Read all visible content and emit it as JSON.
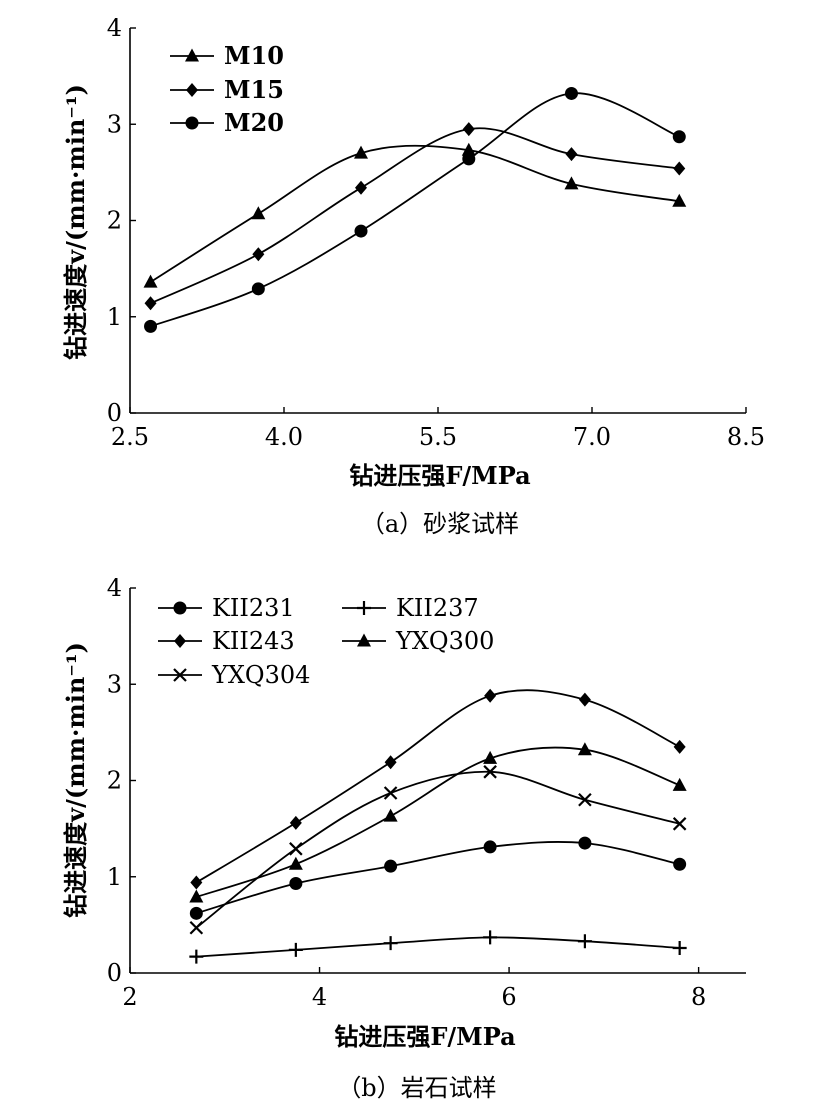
{
  "chart_data": [
    {
      "type": "line",
      "caption": "（a）砂浆试样",
      "xlabel": "钻进压强F/MPa",
      "ylabel": "钻进速度v/(mm·min⁻¹)",
      "xlim": [
        2.5,
        8.5
      ],
      "ylim": [
        0,
        4
      ],
      "xticks": [
        "2.5",
        "4.0",
        "5.5",
        "7.0",
        "8.5"
      ],
      "yticks": [
        "0",
        "1",
        "2",
        "3",
        "4"
      ],
      "legend_position": "top-left",
      "x": [
        2.7,
        3.75,
        4.75,
        5.8,
        6.8,
        7.85
      ],
      "series": [
        {
          "name": "M10",
          "marker": "triangle",
          "values": [
            1.36,
            2.07,
            2.7,
            2.73,
            2.38,
            2.2
          ]
        },
        {
          "name": "M15",
          "marker": "diamond",
          "values": [
            1.14,
            1.65,
            2.34,
            2.95,
            2.69,
            2.54
          ]
        },
        {
          "name": "M20",
          "marker": "circle",
          "values": [
            0.9,
            1.29,
            1.89,
            2.64,
            3.32,
            2.87
          ]
        }
      ]
    },
    {
      "type": "line",
      "caption": "（b）岩石试样",
      "xlabel": "钻进压强F/MPa",
      "ylabel": "钻进速度v/(mm·min⁻¹)",
      "xlim": [
        2,
        8.5
      ],
      "ylim": [
        0,
        4
      ],
      "xticks": [
        "2",
        "4",
        "6",
        "8"
      ],
      "yticks": [
        "0",
        "1",
        "2",
        "3",
        "4"
      ],
      "legend_position": "top-left",
      "x": [
        2.7,
        3.75,
        4.75,
        5.8,
        6.8,
        7.8
      ],
      "series": [
        {
          "name": "KII231",
          "marker": "circle",
          "values": [
            0.62,
            0.93,
            1.11,
            1.31,
            1.35,
            1.13
          ]
        },
        {
          "name": "KII237",
          "marker": "plus",
          "values": [
            0.17,
            0.24,
            0.31,
            0.37,
            0.33,
            0.26
          ]
        },
        {
          "name": "KII243",
          "marker": "diamond",
          "values": [
            0.94,
            1.56,
            2.19,
            2.88,
            2.84,
            2.35
          ]
        },
        {
          "name": "YXQ300",
          "marker": "triangle",
          "values": [
            0.79,
            1.13,
            1.63,
            2.23,
            2.32,
            1.95
          ]
        },
        {
          "name": "YXQ304",
          "marker": "cross",
          "values": [
            0.47,
            1.29,
            1.87,
            2.09,
            1.8,
            1.55
          ]
        }
      ]
    }
  ]
}
